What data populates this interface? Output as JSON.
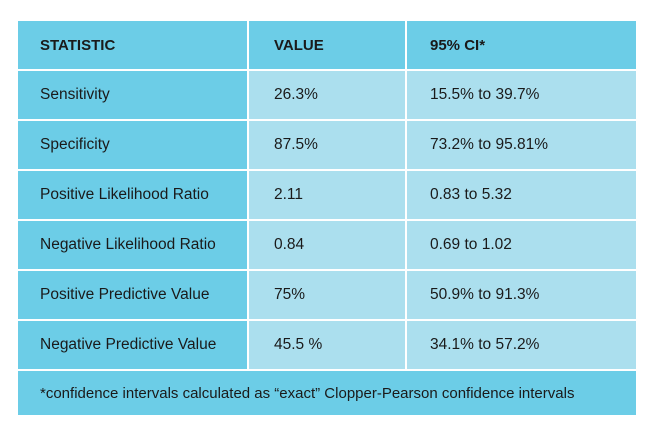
{
  "table": {
    "headers": [
      "STATISTIC",
      "VALUE",
      "95% CI*"
    ],
    "rows": [
      [
        "Sensitivity",
        "26.3%",
        "15.5% to 39.7%"
      ],
      [
        "Specificity",
        "87.5%",
        "73.2% to 95.81%"
      ],
      [
        "Positive Likelihood Ratio",
        "2.11",
        "0.83 to 5.32"
      ],
      [
        "Negative Likelihood Ratio",
        "0.84",
        "0.69 to 1.02"
      ],
      [
        "Positive Predictive Value",
        "75%",
        "50.9% to 91.3%"
      ],
      [
        "Negative Predictive Value",
        "45.5 %",
        "34.1% to 57.2%"
      ]
    ],
    "footnote": "*confidence intervals calculated as “exact” Clopper-Pearson confidence intervals"
  },
  "colors": {
    "dark_cell": "#6ccde7",
    "light_cell": "#abdfee",
    "text": "#1a1a1a"
  }
}
